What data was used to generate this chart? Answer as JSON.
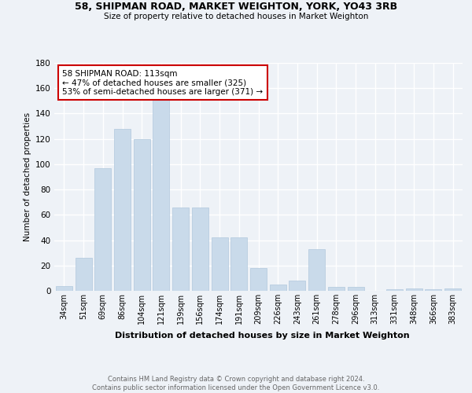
{
  "title1": "58, SHIPMAN ROAD, MARKET WEIGHTON, YORK, YO43 3RB",
  "title2": "Size of property relative to detached houses in Market Weighton",
  "xlabel": "Distribution of detached houses by size in Market Weighton",
  "ylabel": "Number of detached properties",
  "bar_labels": [
    "34sqm",
    "51sqm",
    "69sqm",
    "86sqm",
    "104sqm",
    "121sqm",
    "139sqm",
    "156sqm",
    "174sqm",
    "191sqm",
    "209sqm",
    "226sqm",
    "243sqm",
    "261sqm",
    "278sqm",
    "296sqm",
    "313sqm",
    "331sqm",
    "348sqm",
    "366sqm",
    "383sqm"
  ],
  "bar_values": [
    4,
    26,
    97,
    128,
    120,
    151,
    66,
    66,
    42,
    42,
    18,
    5,
    8,
    33,
    3,
    3,
    0,
    1,
    2,
    1,
    2
  ],
  "bar_color": "#c9daea",
  "bar_edge_color": "#b0c8dc",
  "annotation_text": "58 SHIPMAN ROAD: 113sqm\n← 47% of detached houses are smaller (325)\n53% of semi-detached houses are larger (371) →",
  "annotation_box_color": "#ffffff",
  "annotation_box_edge": "#cc0000",
  "ylim": [
    0,
    180
  ],
  "yticks": [
    0,
    20,
    40,
    60,
    80,
    100,
    120,
    140,
    160,
    180
  ],
  "bg_color": "#eef2f7",
  "grid_color": "#ffffff",
  "footer": "Contains HM Land Registry data © Crown copyright and database right 2024.\nContains public sector information licensed under the Open Government Licence v3.0."
}
